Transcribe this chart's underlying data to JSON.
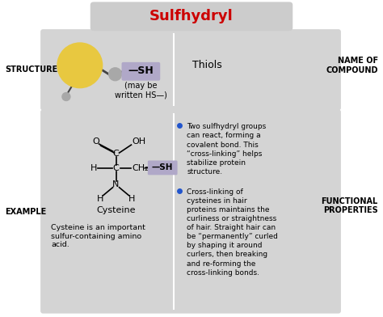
{
  "title": "Sulfhydryl",
  "title_color": "#cc0000",
  "title_bg": "#cccccc",
  "bg_color": "#ffffff",
  "panel_bg": "#d4d4d4",
  "left_label_structure": "STRUCTURE",
  "left_label_example": "EXAMPLE",
  "right_label_top": "NAME OF\nCOMPOUND",
  "right_label_bottom": "FUNCTIONAL\nPROPERTIES",
  "thiols_text": "Thiols",
  "sh_label": "—SH",
  "sh_bg": "#b0a8c8",
  "may_be_text": "(may be\nwritten HS—)",
  "cysteine_label": "Cysteine",
  "cysteine_desc": "Cysteine is an important\nsulfur-containing amino\nacid.",
  "bullet1": "Two sulfhydryl groups\ncan react, forming a\ncovalent bond. This\n“cross-linking” helps\nstabilize protein\nstructure.",
  "bullet2": "Cross-linking of\ncysteines in hair\nproteins maintains the\ncurliness or straightness\nof hair. Straight hair can\nbe “permanently” curled\nby shaping it around\ncurlers, then breaking\nand re-forming the\ncross-linking bonds.",
  "bullet_color": "#2255cc",
  "sulfur_color": "#e8c840",
  "small_atom_color": "#a8a8a8",
  "bond_color": "#444444"
}
